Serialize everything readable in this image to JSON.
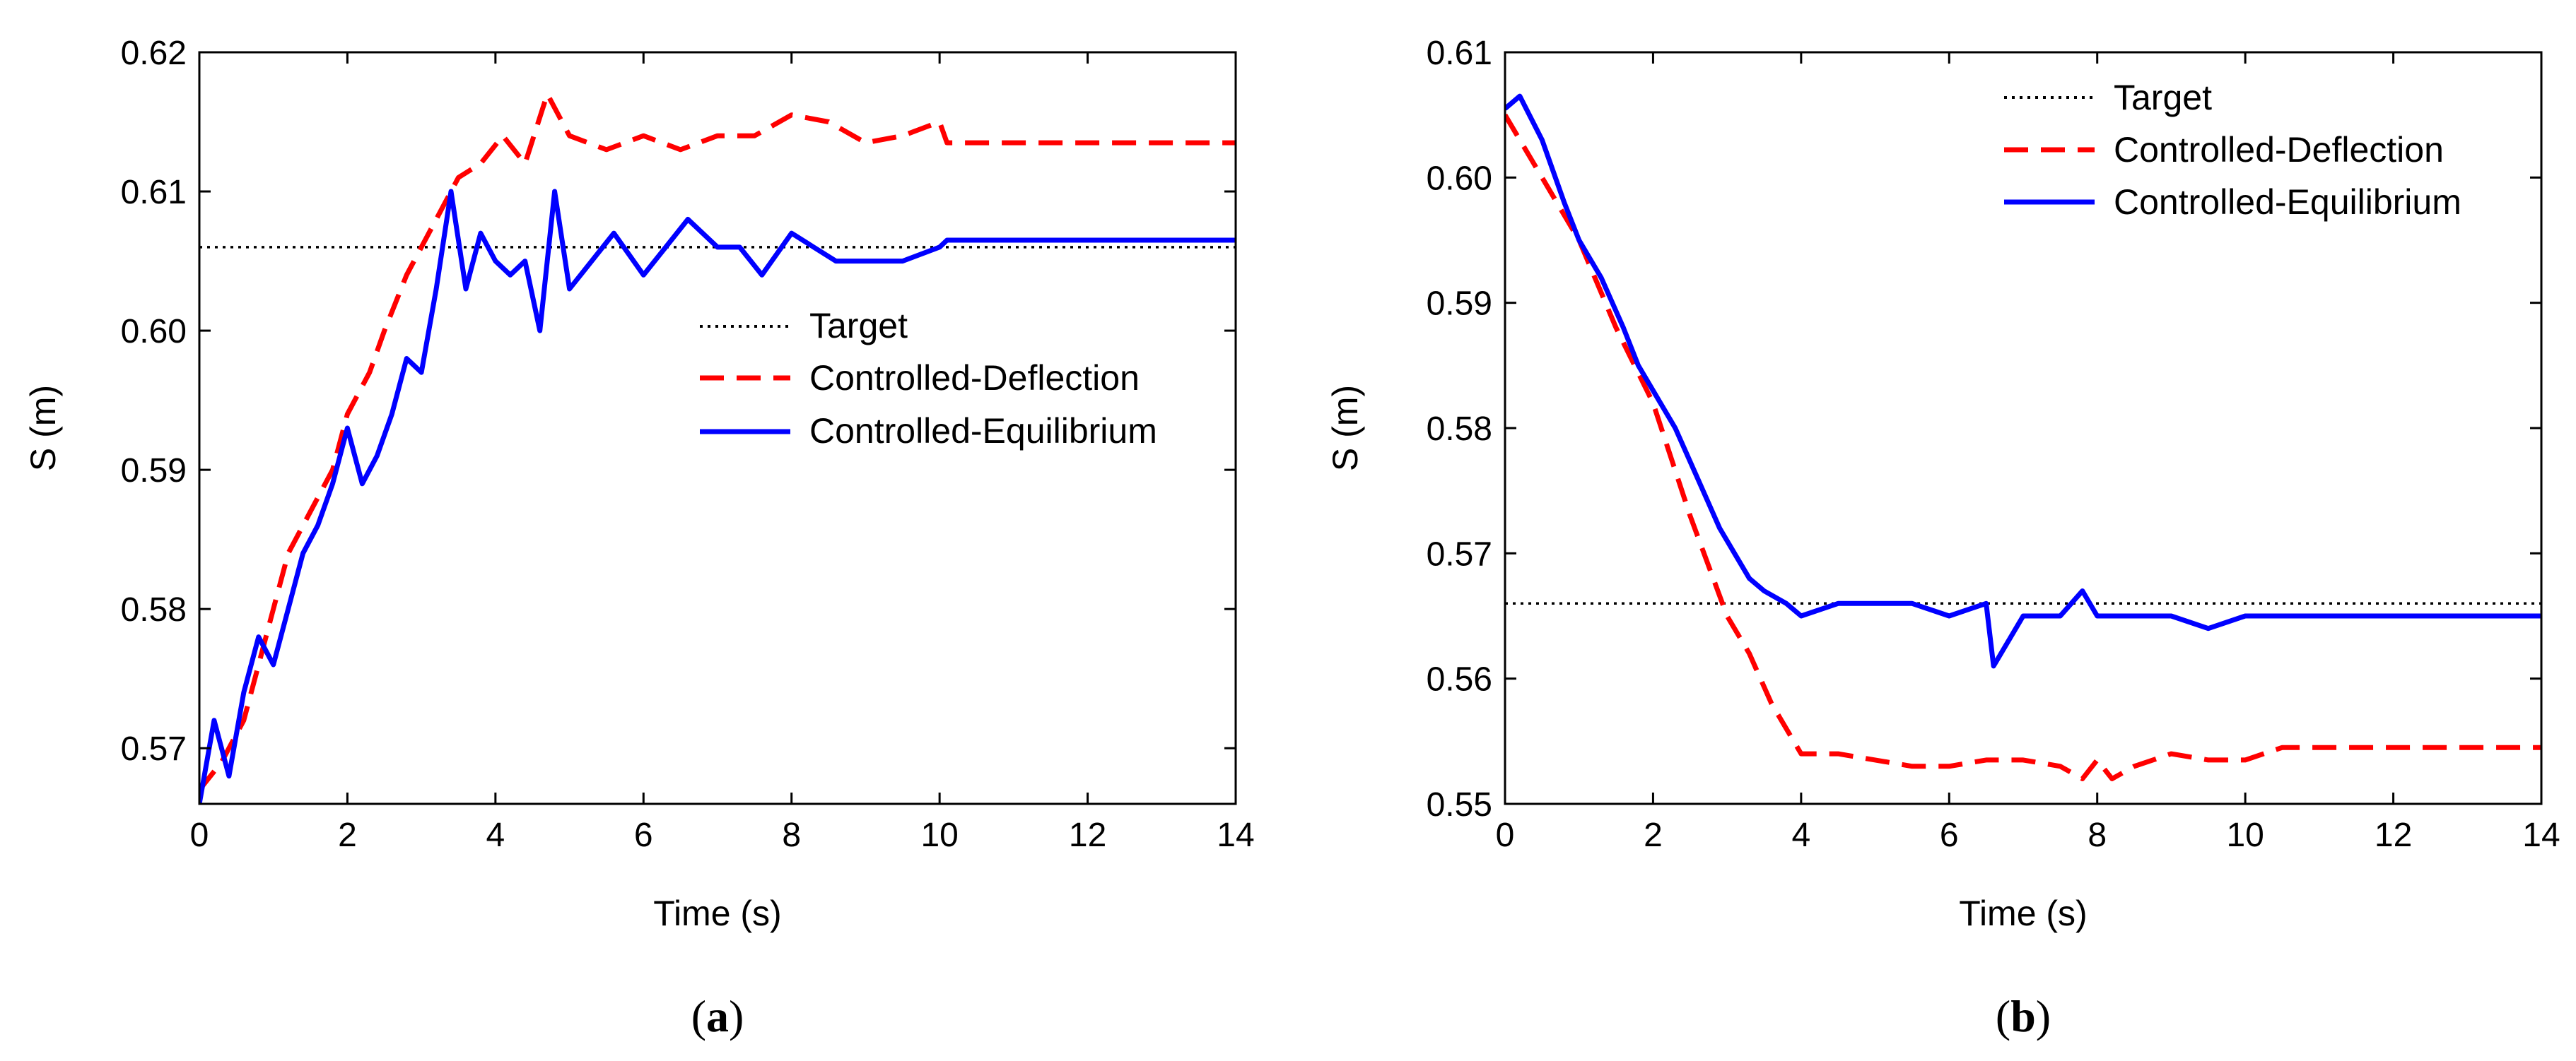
{
  "chart_data": [
    {
      "type": "line",
      "panel_label": "a",
      "xlabel": "Time (s)",
      "ylabel": "S (m)",
      "xlim": [
        0,
        14
      ],
      "ylim": [
        0.566,
        0.62
      ],
      "xticks": [
        0,
        2,
        4,
        6,
        8,
        10,
        12,
        14
      ],
      "yticks": [
        0.57,
        0.58,
        0.59,
        0.6,
        0.61,
        0.62
      ],
      "ytick_labels": [
        "0.57",
        "0.58",
        "0.59",
        "0.60",
        "0.61",
        "0.62"
      ],
      "grid": false,
      "legend_position": "center-right",
      "series": [
        {
          "name": "Target",
          "style": "dotted",
          "color": "#000000",
          "x": [
            0,
            14
          ],
          "y": [
            0.606,
            0.606
          ]
        },
        {
          "name": "Controlled-Deflection",
          "style": "dashed",
          "color": "#ff0000",
          "x": [
            0,
            0.3,
            0.6,
            0.8,
            1.0,
            1.2,
            1.5,
            1.8,
            2.0,
            2.3,
            2.5,
            2.8,
            3.0,
            3.2,
            3.5,
            3.8,
            4.1,
            4.4,
            4.7,
            5.0,
            5.5,
            6.0,
            6.5,
            7.0,
            7.5,
            8.0,
            8.5,
            9.0,
            9.5,
            10.0,
            10.1,
            11.0,
            12.0,
            13.0,
            14.0
          ],
          "y": [
            0.567,
            0.569,
            0.572,
            0.576,
            0.58,
            0.584,
            0.587,
            0.59,
            0.594,
            0.597,
            0.6,
            0.604,
            0.606,
            0.608,
            0.611,
            0.612,
            0.614,
            0.612,
            0.617,
            0.614,
            0.613,
            0.614,
            0.613,
            0.614,
            0.614,
            0.6155,
            0.615,
            0.6135,
            0.614,
            0.615,
            0.6135,
            0.6135,
            0.6135,
            0.6135,
            0.6135
          ]
        },
        {
          "name": "Controlled-Equilibrium",
          "style": "solid",
          "color": "#0000ff",
          "x": [
            0,
            0.2,
            0.4,
            0.6,
            0.8,
            1.0,
            1.2,
            1.4,
            1.6,
            1.8,
            2.0,
            2.2,
            2.4,
            2.6,
            2.8,
            3.0,
            3.2,
            3.4,
            3.6,
            3.8,
            4.0,
            4.2,
            4.4,
            4.6,
            4.8,
            5.0,
            5.3,
            5.6,
            6.0,
            6.3,
            6.6,
            7.0,
            7.3,
            7.6,
            8.0,
            8.3,
            8.6,
            9.0,
            9.5,
            10.0,
            10.1,
            11.0,
            12.0,
            13.0,
            14.0
          ],
          "y": [
            0.566,
            0.572,
            0.568,
            0.574,
            0.578,
            0.576,
            0.58,
            0.584,
            0.586,
            0.589,
            0.593,
            0.589,
            0.591,
            0.594,
            0.598,
            0.597,
            0.603,
            0.61,
            0.603,
            0.607,
            0.605,
            0.604,
            0.605,
            0.6,
            0.61,
            0.603,
            0.605,
            0.607,
            0.604,
            0.606,
            0.608,
            0.606,
            0.606,
            0.604,
            0.607,
            0.606,
            0.605,
            0.605,
            0.605,
            0.606,
            0.6065,
            0.6065,
            0.6065,
            0.6065,
            0.6065
          ]
        }
      ]
    },
    {
      "type": "line",
      "panel_label": "b",
      "xlabel": "Time (s)",
      "ylabel": "S (m)",
      "xlim": [
        0,
        14
      ],
      "ylim": [
        0.55,
        0.61
      ],
      "xticks": [
        0,
        2,
        4,
        6,
        8,
        10,
        12,
        14
      ],
      "yticks": [
        0.55,
        0.56,
        0.57,
        0.58,
        0.59,
        0.6,
        0.61
      ],
      "ytick_labels": [
        "0.55",
        "0.56",
        "0.57",
        "0.58",
        "0.59",
        "0.60",
        "0.61"
      ],
      "grid": false,
      "legend_position": "top-right",
      "series": [
        {
          "name": "Target",
          "style": "dotted",
          "color": "#000000",
          "x": [
            0,
            14
          ],
          "y": [
            0.566,
            0.566
          ]
        },
        {
          "name": "Controlled-Deflection",
          "style": "dashed",
          "color": "#ff0000",
          "x": [
            0,
            0.5,
            1.0,
            1.5,
            2.0,
            2.5,
            3.0,
            3.3,
            3.6,
            4.0,
            4.5,
            5.0,
            5.5,
            6.0,
            6.5,
            7.0,
            7.5,
            7.8,
            8.0,
            8.2,
            8.5,
            9.0,
            9.5,
            10.0,
            10.5,
            11.0,
            12.0,
            13.0,
            14.0
          ],
          "y": [
            0.605,
            0.6,
            0.595,
            0.588,
            0.582,
            0.573,
            0.565,
            0.562,
            0.558,
            0.554,
            0.554,
            0.5535,
            0.553,
            0.553,
            0.5535,
            0.5535,
            0.553,
            0.552,
            0.5535,
            0.552,
            0.553,
            0.554,
            0.5535,
            0.5535,
            0.5545,
            0.5545,
            0.5545,
            0.5545,
            0.5545
          ]
        },
        {
          "name": "Controlled-Equilibrium",
          "style": "solid",
          "color": "#0000ff",
          "x": [
            0,
            0.2,
            0.5,
            0.8,
            1.0,
            1.3,
            1.6,
            1.8,
            2.0,
            2.3,
            2.6,
            2.9,
            3.1,
            3.3,
            3.5,
            3.8,
            4.0,
            4.5,
            5.0,
            5.5,
            6.0,
            6.5,
            6.6,
            7.0,
            7.5,
            7.8,
            8.0,
            8.5,
            9.0,
            9.5,
            10.0,
            10.5,
            11.0,
            12.0,
            13.0,
            14.0
          ],
          "y": [
            0.6055,
            0.6065,
            0.603,
            0.598,
            0.595,
            0.592,
            0.588,
            0.585,
            0.583,
            0.58,
            0.576,
            0.572,
            0.57,
            0.568,
            0.567,
            0.566,
            0.565,
            0.566,
            0.566,
            0.566,
            0.565,
            0.566,
            0.561,
            0.565,
            0.565,
            0.567,
            0.565,
            0.565,
            0.565,
            0.564,
            0.565,
            0.565,
            0.565,
            0.565,
            0.565,
            0.565
          ]
        }
      ]
    }
  ]
}
